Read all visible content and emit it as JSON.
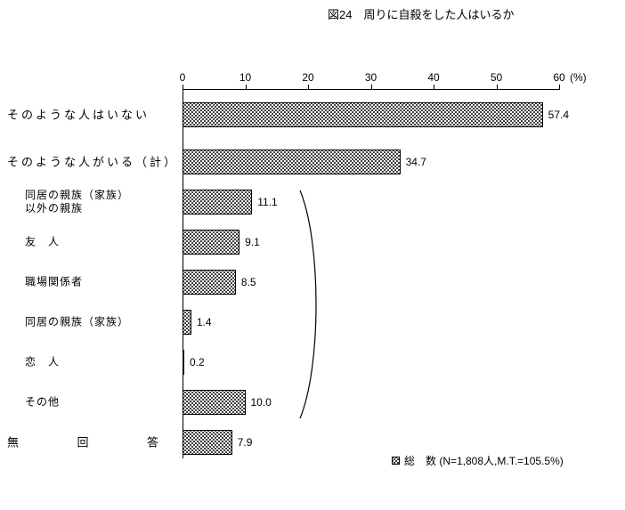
{
  "title": "図24　周りに自殺をした人はいるか",
  "axis": {
    "tick_labels": [
      "0",
      "10",
      "20",
      "30",
      "40",
      "50",
      "60"
    ],
    "unit_label": "(%)",
    "max": 60
  },
  "legend": {
    "text": "総　数 (N=1,808人,M.T.=105.5%)"
  },
  "rows": [
    {
      "label_lines": [
        "そのような人はいない"
      ],
      "style": "main",
      "value": 57.4,
      "value_label": "57.4"
    },
    {
      "label_lines": [
        "そのような人がいる（計）"
      ],
      "style": "main",
      "value": 34.7,
      "value_label": "34.7"
    },
    {
      "label_lines": [
        "同居の親族（家族）",
        "以外の親族"
      ],
      "style": "sub",
      "value": 11.1,
      "value_label": "11.1"
    },
    {
      "label_lines": [
        "友　人"
      ],
      "style": "sub",
      "value": 9.1,
      "value_label": "9.1"
    },
    {
      "label_lines": [
        "職場関係者"
      ],
      "style": "sub",
      "value": 8.5,
      "value_label": "8.5"
    },
    {
      "label_lines": [
        "同居の親族（家族）"
      ],
      "style": "sub",
      "value": 1.4,
      "value_label": "1.4"
    },
    {
      "label_lines": [
        "恋　人"
      ],
      "style": "sub",
      "value": 0.2,
      "value_label": "0.2"
    },
    {
      "label_lines": [
        "その他"
      ],
      "style": "sub",
      "value": 10.0,
      "value_label": "10.0"
    },
    {
      "label_lines": [
        "無回答"
      ],
      "style": "spread",
      "value": 7.9,
      "value_label": "7.9"
    }
  ],
  "chart_data": {
    "type": "bar",
    "orientation": "horizontal",
    "title": "図24　周りに自殺をした人はいるか",
    "categories": [
      "そのような人はいない",
      "そのような人がいる（計）",
      "同居の親族（家族）以外の親族",
      "友　人",
      "職場関係者",
      "同居の親族（家族）",
      "恋　人",
      "その他",
      "無回答"
    ],
    "values": [
      57.4,
      34.7,
      11.1,
      9.1,
      8.5,
      1.4,
      0.2,
      10.0,
      7.9
    ],
    "xlabel": "(%)",
    "xlim": [
      0,
      60
    ],
    "x_ticks": [
      0,
      10,
      20,
      30,
      40,
      50,
      60
    ],
    "grid": false,
    "legend": [
      "総　数 (N=1,808人,M.T.=105.5%)"
    ],
    "legend_position": "bottom-right",
    "group_brace": "同居の親族（家族）以外の親族 〜 その他 の6項目が括弧でグループ化されている"
  }
}
